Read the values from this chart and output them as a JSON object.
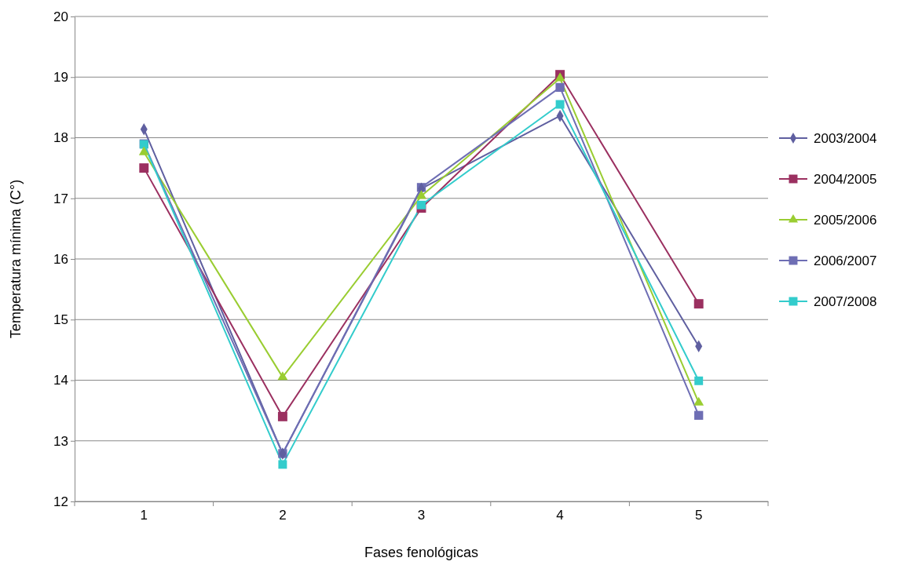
{
  "chart_data": {
    "type": "line",
    "xlabel": "Fases fenológicas",
    "ylabel": "Temperatura mínima (C°)",
    "categories": [
      "1",
      "2",
      "3",
      "4",
      "5"
    ],
    "ylim": [
      12,
      20
    ],
    "yticks": [
      12,
      13,
      14,
      15,
      16,
      17,
      18,
      19,
      20
    ],
    "grid": "y",
    "legend": "right",
    "series": [
      {
        "name": "2003/2004",
        "color": "#5f5fa0",
        "marker": "diamond",
        "values": [
          18.14,
          12.79,
          17.16,
          18.36,
          14.56
        ]
      },
      {
        "name": "2004/2005",
        "color": "#9b3060",
        "marker": "square",
        "values": [
          17.5,
          13.4,
          16.84,
          19.04,
          15.26
        ]
      },
      {
        "name": "2005/2006",
        "color": "#9acd32",
        "marker": "triangle",
        "values": [
          17.76,
          14.05,
          17.04,
          18.98,
          13.63
        ]
      },
      {
        "name": "2006/2007",
        "color": "#6e6eb4",
        "marker": "square",
        "values": [
          17.9,
          12.79,
          17.18,
          18.83,
          13.42
        ]
      },
      {
        "name": "2007/2008",
        "color": "#33cccc",
        "marker": "square",
        "values": [
          17.89,
          12.61,
          16.89,
          18.55,
          13.99
        ]
      }
    ]
  }
}
